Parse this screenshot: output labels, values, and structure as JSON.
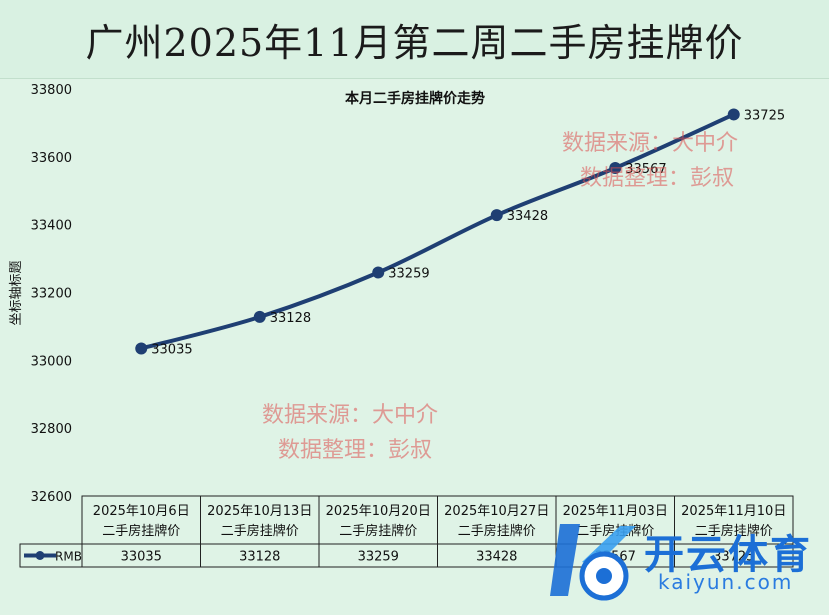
{
  "page_title": "广州2025年11月第二周二手房挂牌价",
  "watermarks": {
    "line1": "数据来源：大中介",
    "line2": "数据整理：彭叔"
  },
  "logo": {
    "name": "开云体育",
    "url": "kaiyun.com"
  },
  "chart_data": {
    "type": "line",
    "title": "本月二手房挂牌价走势",
    "ylabel": "坐标轴标题",
    "xlabel": "",
    "ylim": [
      32600,
      33800
    ],
    "yticks": [
      32600,
      32800,
      33000,
      33200,
      33400,
      33600,
      33800
    ],
    "categories": [
      [
        "2025年10月6日",
        "二手房挂牌价"
      ],
      [
        "2025年10月13日",
        "二手房挂牌价"
      ],
      [
        "2025年10月20日",
        "二手房挂牌价"
      ],
      [
        "2025年10月27日",
        "二手房挂牌价"
      ],
      [
        "2025年11月03日",
        "二手房挂牌价"
      ],
      [
        "2025年11月10日",
        "二手房挂牌价"
      ]
    ],
    "series": [
      {
        "name": "RMB",
        "values": [
          33035,
          33128,
          33259,
          33428,
          33567,
          33725
        ],
        "color": "#1f3f73"
      }
    ],
    "data_table": true,
    "grid": false,
    "legend": "data-table"
  }
}
